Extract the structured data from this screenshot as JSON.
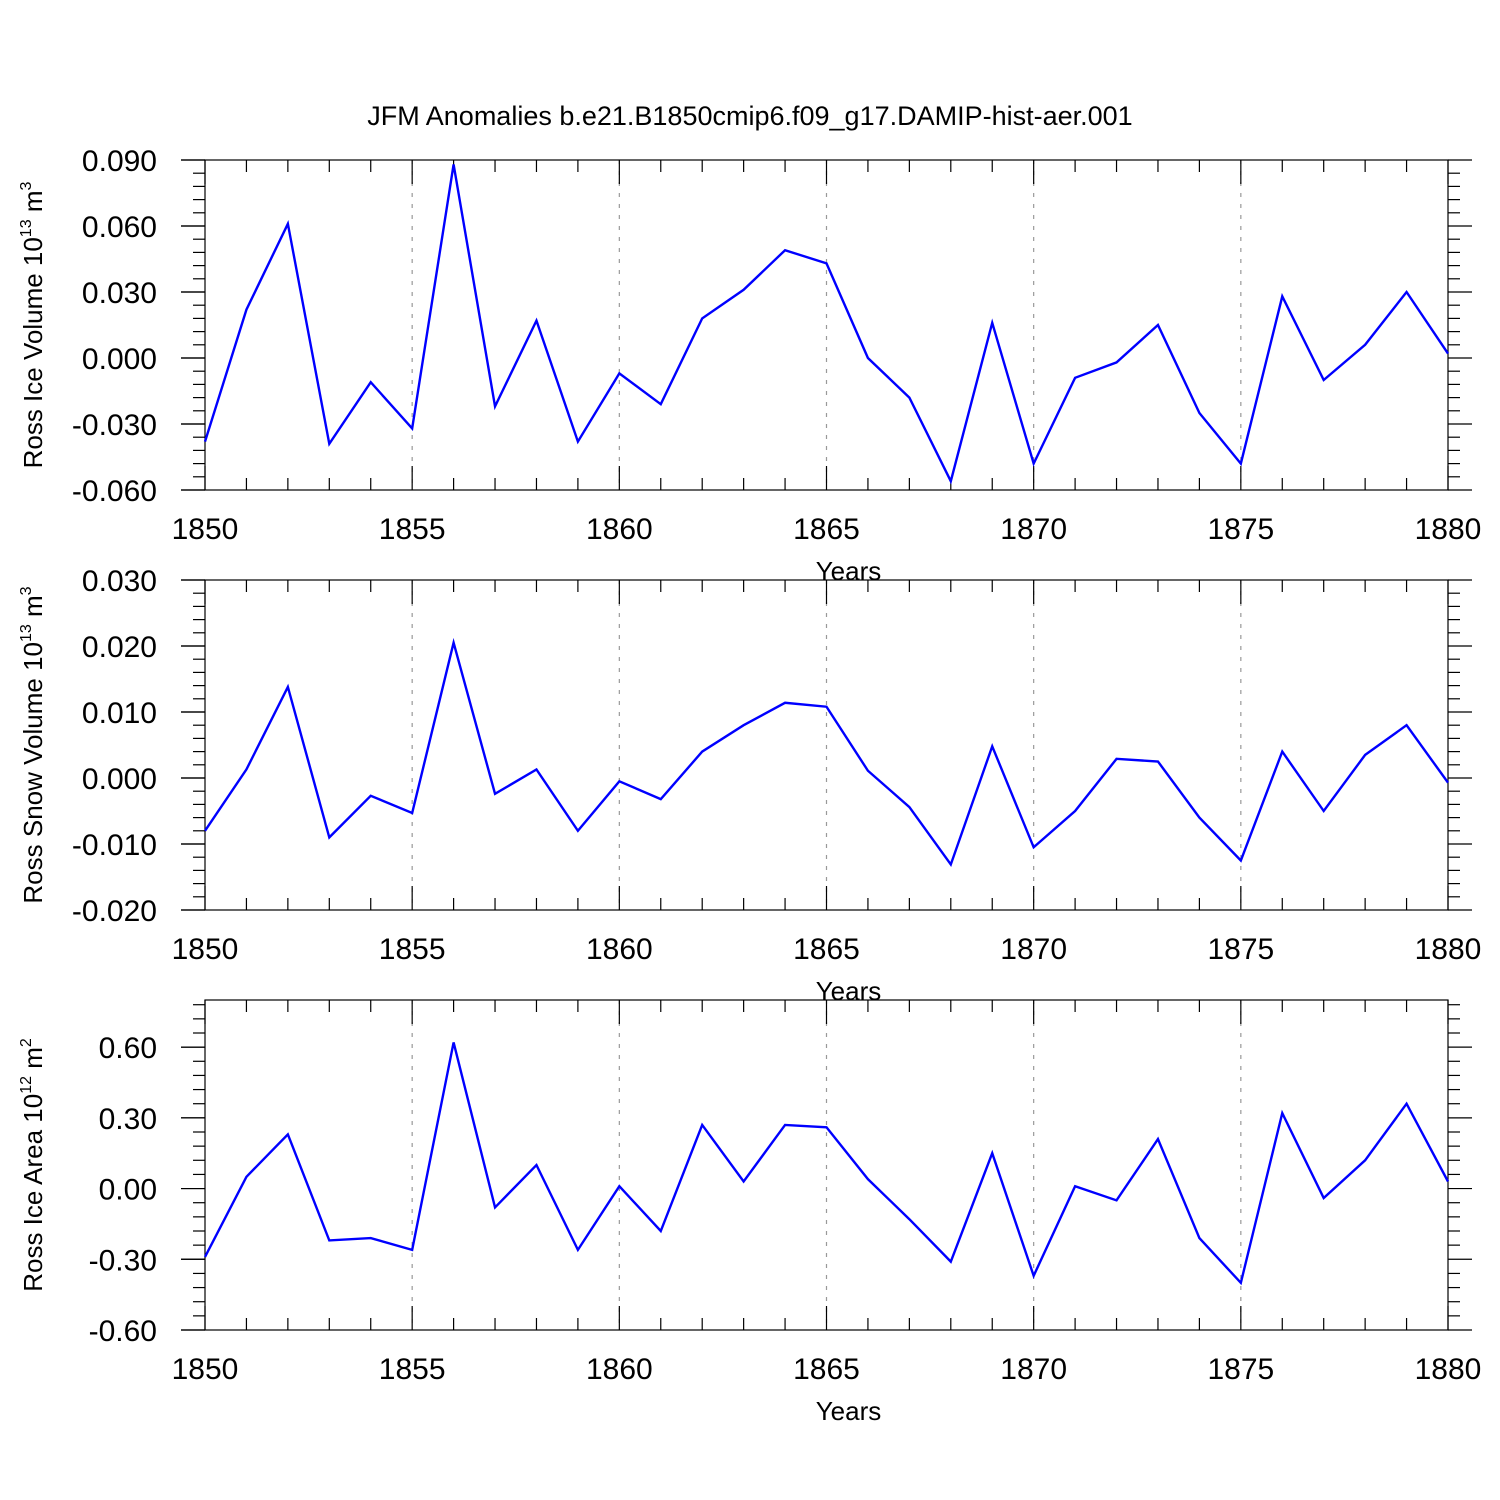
{
  "title": "JFM Anomalies b.e21.B1850cmip6.f09_g17.DAMIP-hist-aer.001",
  "colors": {
    "line": "#0000ff",
    "axis": "#000000",
    "grid": "#999999"
  },
  "chart_data": [
    {
      "type": "line",
      "xlabel": "Years",
      "ylabel": {
        "prefix": "Ross Ice Volume 10",
        "exponent": "13",
        "unit": " m",
        "unit_exponent": "3"
      },
      "xlim": [
        1850,
        1880
      ],
      "ylim": [
        -0.06,
        0.09
      ],
      "x_ticks": [
        "1850",
        "1855",
        "1860",
        "1865",
        "1870",
        "1875",
        "1880"
      ],
      "y_ticks": [
        "-0.060",
        "-0.030",
        "0.000",
        "0.030",
        "0.060",
        "0.090"
      ],
      "grid": "vertical dashed at 1855, 1860, 1865, 1870, 1875",
      "x": [
        1850,
        1851,
        1852,
        1853,
        1854,
        1855,
        1856,
        1857,
        1858,
        1859,
        1860,
        1861,
        1862,
        1863,
        1864,
        1865,
        1866,
        1867,
        1868,
        1869,
        1870,
        1871,
        1872,
        1873,
        1874,
        1875,
        1876,
        1877,
        1878,
        1879,
        1880
      ],
      "series": [
        {
          "values": [
            -0.038,
            0.022,
            0.061,
            -0.039,
            -0.011,
            -0.032,
            0.088,
            -0.022,
            0.017,
            -0.038,
            -0.007,
            -0.021,
            0.018,
            0.031,
            0.049,
            0.043,
            0.0,
            -0.018,
            -0.056,
            0.016,
            -0.048,
            -0.009,
            -0.002,
            0.015,
            -0.025,
            -0.048,
            0.028,
            -0.01,
            0.006,
            0.03,
            0.002
          ]
        }
      ]
    },
    {
      "type": "line",
      "xlabel": "Years",
      "ylabel": {
        "prefix": "Ross Snow Volume 10",
        "exponent": "13",
        "unit": " m",
        "unit_exponent": "3"
      },
      "xlim": [
        1850,
        1880
      ],
      "ylim": [
        -0.02,
        0.03
      ],
      "x_ticks": [
        "1850",
        "1855",
        "1860",
        "1865",
        "1870",
        "1875",
        "1880"
      ],
      "y_ticks": [
        "-0.020",
        "-0.010",
        "0.000",
        "0.010",
        "0.020",
        "0.030"
      ],
      "grid": "vertical dashed at 1855, 1860, 1865, 1870, 1875",
      "x": [
        1850,
        1851,
        1852,
        1853,
        1854,
        1855,
        1856,
        1857,
        1858,
        1859,
        1860,
        1861,
        1862,
        1863,
        1864,
        1865,
        1866,
        1867,
        1868,
        1869,
        1870,
        1871,
        1872,
        1873,
        1874,
        1875,
        1876,
        1877,
        1878,
        1879,
        1880
      ],
      "series": [
        {
          "values": [
            -0.008,
            0.0013,
            0.0138,
            -0.009,
            -0.0027,
            -0.0053,
            0.0205,
            -0.0024,
            0.0013,
            -0.008,
            -0.0005,
            -0.0032,
            0.004,
            0.008,
            0.0114,
            0.0108,
            0.0011,
            -0.0044,
            -0.0131,
            0.0048,
            -0.0105,
            -0.005,
            0.0029,
            0.0025,
            -0.006,
            -0.0125,
            0.004,
            -0.005,
            0.0035,
            0.008,
            -0.0007
          ]
        }
      ]
    },
    {
      "type": "line",
      "xlabel": "Years",
      "ylabel": {
        "prefix": "Ross Ice Area 10",
        "exponent": "12",
        "unit": " m",
        "unit_exponent": "2"
      },
      "xlim": [
        1850,
        1880
      ],
      "ylim": [
        -0.6,
        0.8
      ],
      "x_ticks": [
        "1850",
        "1855",
        "1860",
        "1865",
        "1870",
        "1875",
        "1880"
      ],
      "y_ticks": [
        "-0.60",
        "-0.30",
        "0.00",
        "0.30",
        "0.60"
      ],
      "grid": "vertical dashed at 1855, 1860, 1865, 1870, 1875",
      "x": [
        1850,
        1851,
        1852,
        1853,
        1854,
        1855,
        1856,
        1857,
        1858,
        1859,
        1860,
        1861,
        1862,
        1863,
        1864,
        1865,
        1866,
        1867,
        1868,
        1869,
        1870,
        1871,
        1872,
        1873,
        1874,
        1875,
        1876,
        1877,
        1878,
        1879,
        1880
      ],
      "series": [
        {
          "values": [
            -0.29,
            0.05,
            0.23,
            -0.22,
            -0.21,
            -0.26,
            0.62,
            -0.08,
            0.1,
            -0.26,
            0.01,
            -0.18,
            0.27,
            0.03,
            0.27,
            0.26,
            0.04,
            -0.13,
            -0.31,
            0.15,
            -0.37,
            0.01,
            -0.05,
            0.21,
            -0.21,
            -0.4,
            0.32,
            -0.04,
            0.12,
            0.36,
            0.03
          ]
        }
      ]
    }
  ]
}
